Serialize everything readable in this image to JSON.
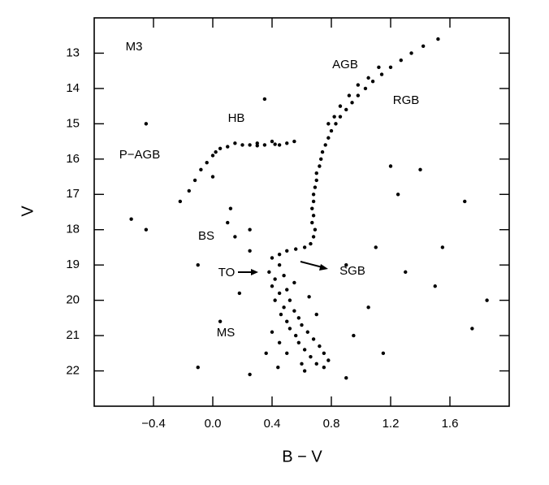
{
  "chart_data": {
    "type": "scatter",
    "x_label": "B − V",
    "y_label": "V",
    "annotations": [
      "M3",
      "AGB",
      "RGB",
      "HB",
      "P−AGB",
      "BS",
      "TO",
      "SGB",
      "MS"
    ],
    "xlim": [
      -0.8,
      2.0
    ],
    "xticks": [
      {
        "value": -0.4,
        "label": "−0.4"
      },
      {
        "value": 0,
        "label": "0.0"
      },
      0.4,
      0.8,
      1.2,
      1.6
    ],
    "ylim": [
      23,
      12
    ],
    "y_inverted": true,
    "yticks": [
      13,
      14,
      15,
      16,
      17,
      18,
      19,
      20,
      21,
      22
    ],
    "series": [
      {
        "color": "#000000",
        "x": [
          0.68,
          0.69,
          0.67,
          0.68,
          0.67,
          0.68,
          0.68,
          0.69,
          0.7,
          0.7,
          0.72,
          0.73,
          0.74,
          0.76,
          0.78,
          0.8,
          0.83,
          0.86,
          0.9,
          0.94,
          0.98,
          1.03,
          1.08,
          1.14,
          1.2,
          1.27,
          1.34,
          1.42,
          1.52,
          0.45,
          0.5,
          0.56,
          0.62,
          0.66,
          0.78,
          0.82,
          0.86,
          0.92,
          0.98,
          1.05,
          1.12,
          0.55,
          0.5,
          0.45,
          0.4,
          0.35,
          0.3,
          0.25,
          0.2,
          0.15,
          0.1,
          0.05,
          0.02,
          0.0,
          -0.04,
          -0.08,
          -0.12,
          -0.16,
          -0.22,
          0.3,
          0.42,
          0.4,
          0.45,
          0.38,
          0.42,
          0.48,
          0.4,
          0.45,
          0.5,
          0.42,
          0.48,
          0.52,
          0.46,
          0.55,
          0.5,
          0.58,
          0.52,
          0.6,
          0.56,
          0.64,
          0.58,
          0.68,
          0.62,
          0.72,
          0.66,
          0.75,
          0.7,
          0.78,
          0.6,
          0.5,
          0.45,
          0.4,
          0.36,
          0.55,
          0.65,
          0.7,
          0.62,
          0.75,
          0.44,
          -0.45,
          -0.55,
          -0.45,
          0.12,
          0.1,
          0.15,
          0.25,
          0.25,
          -0.1,
          0.18,
          0.05,
          0.9,
          1.1,
          1.3,
          1.5,
          1.7,
          1.4,
          1.2,
          1.75,
          1.85,
          1.05,
          0.95,
          1.15,
          0.25,
          0.9,
          -0.1,
          0.0,
          0.35,
          1.25,
          1.55
        ],
        "values": [
          18.2,
          18.0,
          17.8,
          17.6,
          17.4,
          17.2,
          17.0,
          16.8,
          16.6,
          16.4,
          16.2,
          16.0,
          15.8,
          15.6,
          15.4,
          15.2,
          15.0,
          14.8,
          14.6,
          14.4,
          14.2,
          14.0,
          13.8,
          13.6,
          13.4,
          13.2,
          13.0,
          12.8,
          12.6,
          18.7,
          18.6,
          18.55,
          18.5,
          18.4,
          15.0,
          14.8,
          14.5,
          14.2,
          13.9,
          13.7,
          13.4,
          15.5,
          15.55,
          15.6,
          15.5,
          15.6,
          15.55,
          15.6,
          15.6,
          15.55,
          15.65,
          15.7,
          15.8,
          15.9,
          16.1,
          16.3,
          16.6,
          16.9,
          17.2,
          15.62,
          15.58,
          18.8,
          19.0,
          19.2,
          19.4,
          19.3,
          19.6,
          19.8,
          19.7,
          20.0,
          20.2,
          20.0,
          20.4,
          20.3,
          20.6,
          20.5,
          20.8,
          20.7,
          21.0,
          20.9,
          21.2,
          21.1,
          21.4,
          21.3,
          21.6,
          21.5,
          21.8,
          21.7,
          21.8,
          21.5,
          21.2,
          20.9,
          21.5,
          19.5,
          19.9,
          20.4,
          22.0,
          21.9,
          21.9,
          15.0,
          17.7,
          18.0,
          17.4,
          17.8,
          18.2,
          18.0,
          18.6,
          19.0,
          19.8,
          20.6,
          19.0,
          18.5,
          19.2,
          19.6,
          17.2,
          16.3,
          16.2,
          20.8,
          20.0,
          20.2,
          21.0,
          21.5,
          22.1,
          22.2,
          21.9,
          16.5,
          14.3,
          17.0,
          18.5
        ]
      }
    ]
  }
}
